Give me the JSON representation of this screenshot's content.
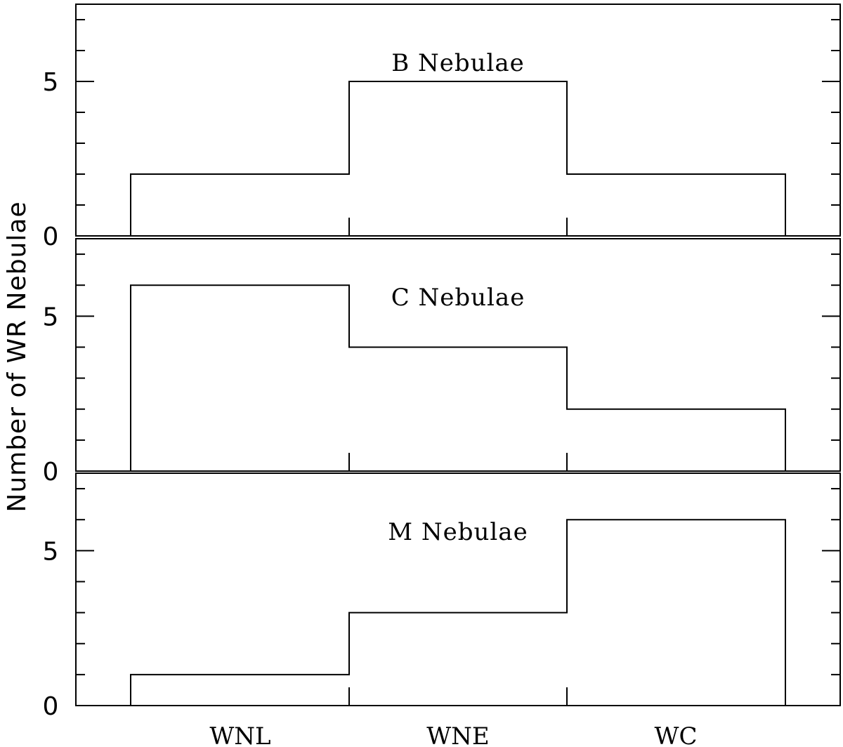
{
  "chart_data": [
    {
      "type": "bar",
      "title": "B Nebulae",
      "categories": [
        "WNL",
        "WNE",
        "WC"
      ],
      "values": [
        2,
        5,
        2
      ],
      "ylim": [
        0,
        7.5
      ],
      "yticks": [
        0,
        5
      ]
    },
    {
      "type": "bar",
      "title": "C Nebulae",
      "categories": [
        "WNL",
        "WNE",
        "WC"
      ],
      "values": [
        6,
        4,
        2
      ],
      "ylim": [
        0,
        7.5
      ],
      "yticks": [
        0,
        5
      ]
    },
    {
      "type": "bar",
      "title": "M Nebulae",
      "categories": [
        "WNL",
        "WNE",
        "WC"
      ],
      "values": [
        1,
        3,
        6
      ],
      "ylim": [
        0,
        7.5
      ],
      "yticks": [
        0,
        5
      ]
    }
  ],
  "ylabel": "Number of WR Nebulae",
  "xcategories": [
    "WNL",
    "WNE",
    "WC"
  ]
}
